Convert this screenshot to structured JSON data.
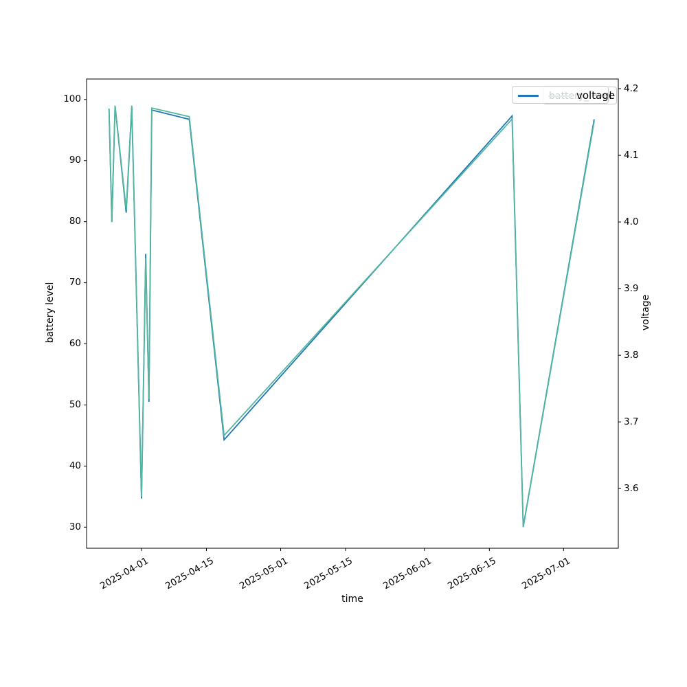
{
  "figure": {
    "background": "#ffffff",
    "spine_color": "#000000",
    "tick_color": "#000000"
  },
  "chart_data": {
    "type": "line",
    "title": "",
    "xlabel": "time",
    "ylabel_left": "battery level",
    "ylabel_right": "voltage",
    "grid": false,
    "x_tick_labels": [
      "2025-04-01",
      "2025-04-15",
      "2025-05-01",
      "2025-05-15",
      "2025-06-01",
      "2025-06-15",
      "2025-07-01"
    ],
    "x_tick_days": [
      0,
      14,
      30,
      44,
      61,
      75,
      91
    ],
    "y_left_ticks": [
      30,
      40,
      50,
      60,
      70,
      80,
      90,
      100
    ],
    "y_right_ticks": [
      3.6,
      3.7,
      3.8,
      3.9,
      4.0,
      4.1,
      4.2
    ],
    "xlim_days": [
      -11.85,
      102.8
    ],
    "ylim_left": [
      26.55,
      103.35
    ],
    "ylim_right": [
      3.5105,
      4.2145
    ],
    "legend": {
      "front_label": "voltage",
      "back_label": "battery_level",
      "position": "upper right"
    },
    "series": [
      {
        "name": "voltage",
        "axis": "right",
        "color": "#1f77b4",
        "points": [
          {
            "date": "2025-03-25",
            "day": -7.0,
            "value": 4.17
          },
          {
            "date": "2025-03-26",
            "day": -6.4,
            "value": 4.0
          },
          {
            "date": "2025-03-26",
            "day": -5.7,
            "value": 4.174
          },
          {
            "date": "2025-03-29",
            "day": -3.3,
            "value": 4.014
          },
          {
            "date": "2025-03-30",
            "day": -2.1,
            "value": 4.172
          },
          {
            "date": "2025-04-01",
            "day": 0.0,
            "value": 3.585
          },
          {
            "date": "2025-04-02",
            "day": 0.9,
            "value": 3.952
          },
          {
            "date": "2025-04-02",
            "day": 1.6,
            "value": 3.73
          },
          {
            "date": "2025-04-03",
            "day": 2.2,
            "value": 4.168
          },
          {
            "date": "2025-04-11",
            "day": 10.3,
            "value": 4.154
          },
          {
            "date": "2025-04-19",
            "day": 17.8,
            "value": 3.673
          },
          {
            "date": "2025-06-20",
            "day": 79.9,
            "value": 4.159
          },
          {
            "date": "2025-06-22",
            "day": 82.3,
            "value": 3.543
          },
          {
            "date": "2025-07-08",
            "day": 97.6,
            "value": 4.154
          }
        ]
      },
      {
        "name": "battery_level",
        "axis": "left",
        "color": "#52b79f",
        "points": [
          {
            "date": "2025-03-25",
            "day": -7.0,
            "value": 98.5
          },
          {
            "date": "2025-03-26",
            "day": -6.4,
            "value": 80
          },
          {
            "date": "2025-03-26",
            "day": -5.7,
            "value": 99
          },
          {
            "date": "2025-03-29",
            "day": -3.3,
            "value": 82
          },
          {
            "date": "2025-03-30",
            "day": -2.1,
            "value": 99
          },
          {
            "date": "2025-04-01",
            "day": 0.0,
            "value": 35
          },
          {
            "date": "2025-04-02",
            "day": 0.9,
            "value": 74
          },
          {
            "date": "2025-04-02",
            "day": 1.6,
            "value": 51
          },
          {
            "date": "2025-04-03",
            "day": 2.2,
            "value": 98.6
          },
          {
            "date": "2025-04-11",
            "day": 10.3,
            "value": 97.2
          },
          {
            "date": "2025-04-19",
            "day": 17.8,
            "value": 45
          },
          {
            "date": "2025-06-20",
            "day": 79.9,
            "value": 96.8
          },
          {
            "date": "2025-06-22",
            "day": 82.3,
            "value": 30
          },
          {
            "date": "2025-07-08",
            "day": 97.6,
            "value": 96.4
          }
        ]
      }
    ]
  }
}
